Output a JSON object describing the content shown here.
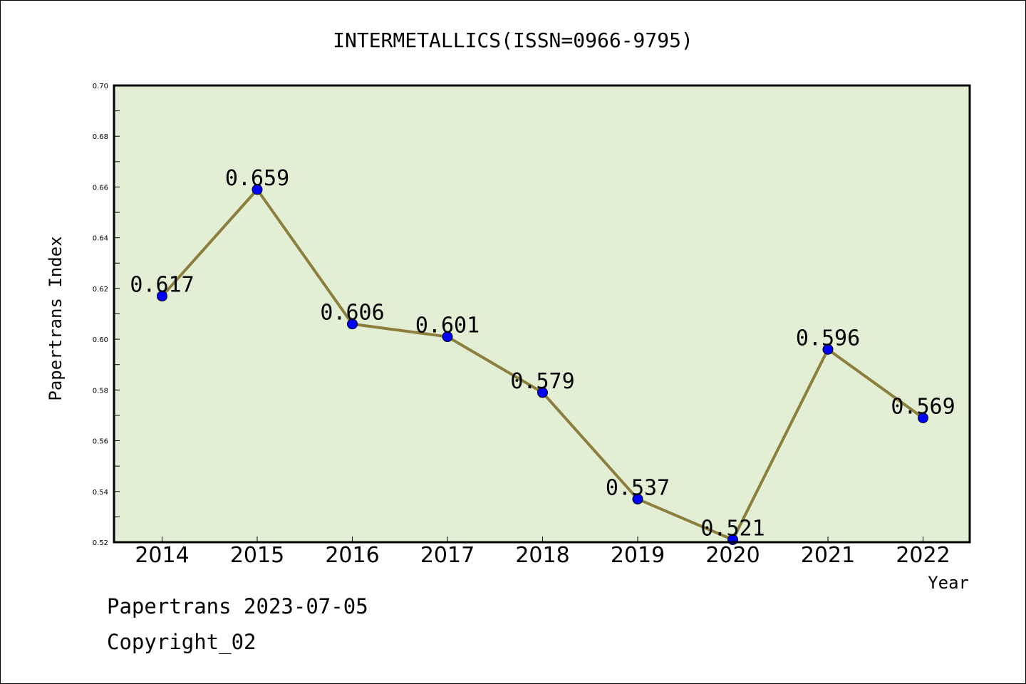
{
  "chart_data": {
    "type": "line",
    "title": "INTERMETALLICS(ISSN=0966-9795)",
    "xlabel": "Year",
    "ylabel": "Papertrans Index",
    "categories": [
      "2014",
      "2015",
      "2016",
      "2017",
      "2018",
      "2019",
      "2020",
      "2021",
      "2022"
    ],
    "values": [
      0.617,
      0.659,
      0.606,
      0.601,
      0.579,
      0.537,
      0.521,
      0.596,
      0.569
    ],
    "data_labels": [
      "0.617",
      "0.659",
      "0.606",
      "0.601",
      "0.579",
      "0.537",
      "0.521",
      "0.596",
      "0.569"
    ],
    "ylim": [
      0.52,
      0.7
    ],
    "yticks": [
      "0.52",
      "0.54",
      "0.56",
      "0.58",
      "0.60",
      "0.62",
      "0.64",
      "0.66",
      "0.68",
      "0.70"
    ],
    "grid": false,
    "colors": {
      "plot_background": "#e2efd5",
      "line": "#8c7e3c",
      "marker": "#0000ff"
    }
  },
  "footer": {
    "source": "Papertrans 2023-07-05",
    "copyright": "Copyright_02"
  }
}
